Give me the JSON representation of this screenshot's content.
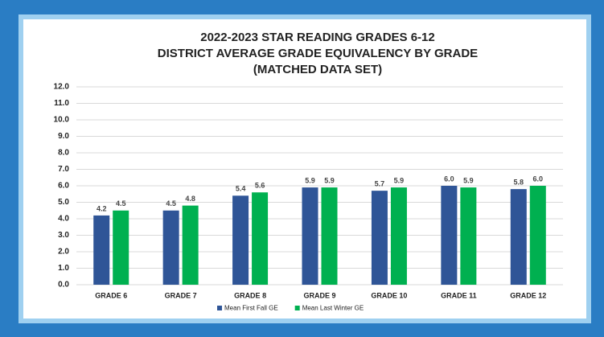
{
  "chart_data": {
    "type": "bar",
    "title": [
      "2022-2023 STAR READING GRADES 6-12",
      "DISTRICT AVERAGE GRADE EQUIVALENCY BY GRADE",
      "(MATCHED DATA SET)"
    ],
    "categories": [
      "GRADE 6",
      "GRADE 7",
      "GRADE 8",
      "GRADE 9",
      "GRADE 10",
      "GRADE 11",
      "GRADE 12"
    ],
    "series": [
      {
        "name": "Mean First Fall GE",
        "color": "#2f5597",
        "values": [
          4.2,
          4.5,
          5.4,
          5.9,
          5.7,
          6.0,
          5.8
        ],
        "value_labels": [
          "4.2",
          "4.5",
          "5.4",
          "5.9",
          "5.7",
          "6.0",
          "5.8"
        ]
      },
      {
        "name": "Mean Last Winter GE",
        "color": "#00b050",
        "values": [
          4.5,
          4.8,
          5.6,
          5.9,
          5.9,
          5.9,
          6.0
        ],
        "value_labels": [
          "4.5",
          "4.8",
          "5.6",
          "5.9",
          "5.9",
          "5.9",
          "6.0"
        ]
      }
    ],
    "ylim": [
      0,
      12
    ],
    "yticks": [
      {
        "value": 0,
        "label": "0.0"
      },
      {
        "value": 1,
        "label": "1.0"
      },
      {
        "value": 2,
        "label": "2.0"
      },
      {
        "value": 3,
        "label": "3.0"
      },
      {
        "value": 4,
        "label": "4.0"
      },
      {
        "value": 5,
        "label": "5.0"
      },
      {
        "value": 6,
        "label": "6.0"
      },
      {
        "value": 7,
        "label": "7.0"
      },
      {
        "value": 8,
        "label": "8.0"
      },
      {
        "value": 9,
        "label": "9.0"
      },
      {
        "value": 10,
        "label": "10.0"
      },
      {
        "value": 11,
        "label": "11.0"
      },
      {
        "value": 12,
        "label": "12.0"
      }
    ],
    "grid": true,
    "legend": "bottom"
  }
}
